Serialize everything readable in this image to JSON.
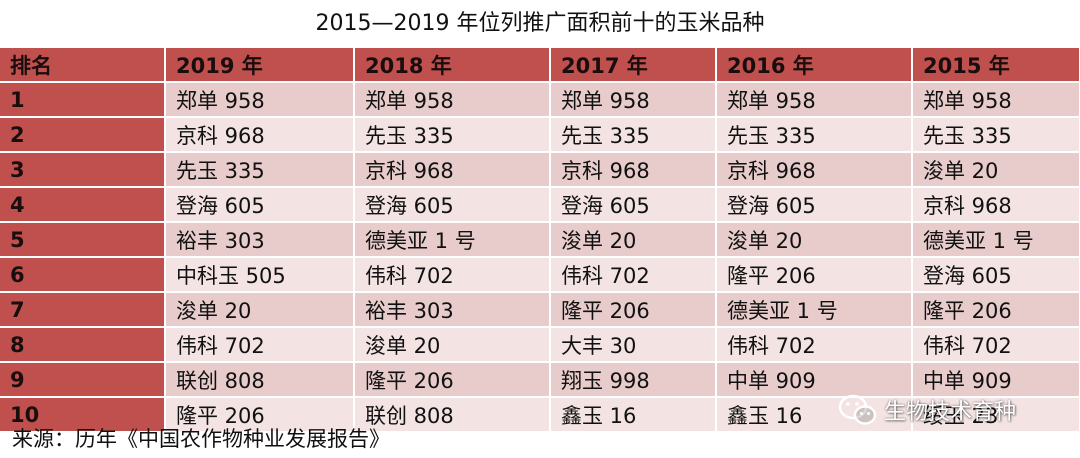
{
  "title": "2015—2019 年位列推广面积前十的玉米品种",
  "table": {
    "headers": [
      "排名",
      "2019 年",
      "2018 年",
      "2017 年",
      "2016 年",
      "2015 年"
    ],
    "rows": [
      [
        "1",
        "郑单 958",
        "郑单 958",
        "郑单 958",
        "郑单 958",
        "郑单 958"
      ],
      [
        "2",
        "京科 968",
        "先玉 335",
        "先玉 335",
        "先玉 335",
        "先玉 335"
      ],
      [
        "3",
        "先玉 335",
        "京科 968",
        "京科 968",
        "京科 968",
        "浚单 20"
      ],
      [
        "4",
        "登海 605",
        "登海 605",
        "登海 605",
        "登海 605",
        "京科 968"
      ],
      [
        "5",
        "裕丰 303",
        "德美亚 1 号",
        "浚单 20",
        "浚单 20",
        "德美亚 1 号"
      ],
      [
        "6",
        "中科玉 505",
        "伟科 702",
        "伟科 702",
        "隆平 206",
        "登海 605"
      ],
      [
        "7",
        "浚单 20",
        "裕丰 303",
        "隆平 206",
        "德美亚 1 号",
        "隆平 206"
      ],
      [
        "8",
        "伟科 702",
        "浚单 20",
        "大丰 30",
        "伟科 702",
        "伟科 702"
      ],
      [
        "9",
        "联创 808",
        "隆平 206",
        "翔玉 998",
        "中单 909",
        "中单 909"
      ],
      [
        "10",
        "隆平 206",
        "联创 808",
        "鑫玉 16",
        "鑫玉 16",
        "绥玉 23"
      ]
    ]
  },
  "source": "来源：历年《中国农作物种业发展报告》",
  "watermark": {
    "icon": "wechat-icon",
    "text": "生物技术育种"
  },
  "colors": {
    "header": "#c0504d",
    "row_odd": "#e8cccb",
    "row_even": "#f3e4e3"
  }
}
